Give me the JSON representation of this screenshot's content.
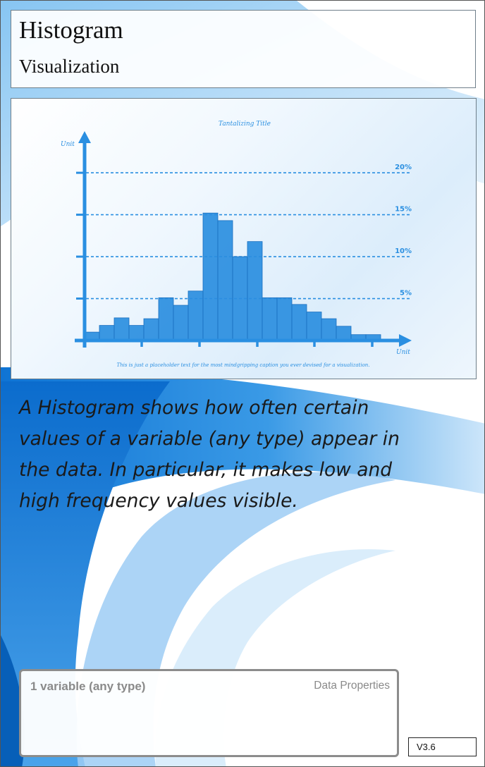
{
  "card": {
    "title": "Histogram",
    "subtitle": "Visualization",
    "description": "A Histogram shows how often certain values of a variable (any type) appear in the data. In particular, it makes low and high frequency values visible.",
    "data_properties": {
      "value": "1 variable (any type)",
      "label": "Data Properties"
    },
    "version": "V3.6"
  },
  "colors": {
    "accent": "#1e88dd",
    "bar": "#2a8ee0",
    "axis": "#2a8fe1"
  },
  "chart_data": {
    "type": "bar",
    "title": "Tantalizing Title",
    "caption": "This is just a placeholder text for the most mindgripping caption you ever devised for a visualization.",
    "xlabel": "Unit",
    "ylabel": "Unit",
    "ylim": [
      0,
      22
    ],
    "y_gridlines": [
      5,
      10,
      15,
      20
    ],
    "y_tick_labels": [
      "5%",
      "10%",
      "15%",
      "20%"
    ],
    "grid": true,
    "values": [
      1,
      1.8,
      2.7,
      1.8,
      2.6,
      5.1,
      4.2,
      5.9,
      15.2,
      14.3,
      10,
      11.8,
      5.1,
      5.1,
      4.3,
      3.4,
      2.6,
      1.7,
      0.7,
      0.7
    ]
  }
}
